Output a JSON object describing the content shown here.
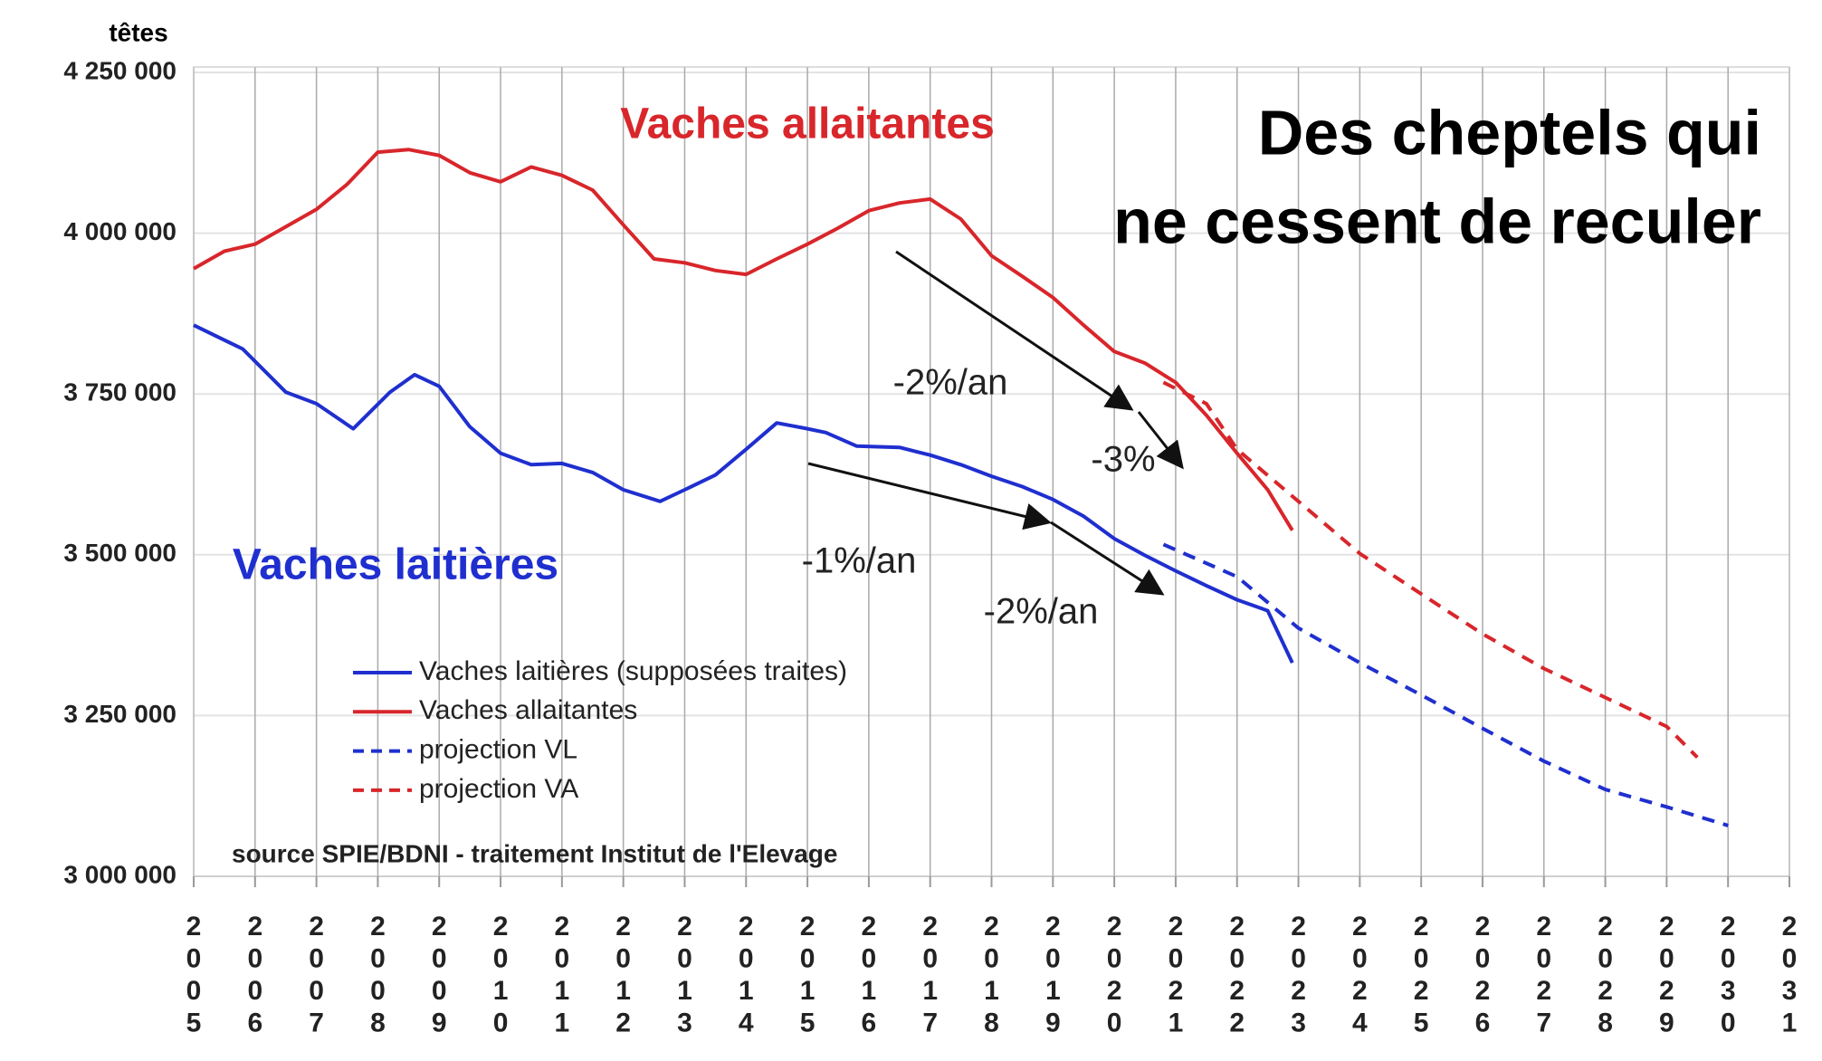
{
  "chart_data": {
    "type": "line",
    "title": [
      "Des cheptels qui",
      "ne cessent de reculer"
    ],
    "y_label": "têtes",
    "annotations": [
      "Vaches allaitantes",
      "Vaches laitières",
      "-2%/an",
      "-3%",
      "-1%/an",
      "-2%/an"
    ],
    "source": "source SPIE/BDNI - traitement Institut de l'Elevage",
    "xlim": [
      2005,
      2031
    ],
    "xticks": [
      2005,
      2006,
      2007,
      2008,
      2009,
      2010,
      2011,
      2012,
      2013,
      2014,
      2015,
      2016,
      2017,
      2018,
      2019,
      2020,
      2021,
      2022,
      2023,
      2024,
      2025,
      2026,
      2027,
      2028,
      2029,
      2030,
      2031
    ],
    "ylim": [
      3000000,
      4250000
    ],
    "yticks": [
      {
        "value": 3000000,
        "label": "3 000 000"
      },
      {
        "value": 3250000,
        "label": "3 250 000"
      },
      {
        "value": 3500000,
        "label": "3 500 000"
      },
      {
        "value": 3750000,
        "label": "3 750 000"
      },
      {
        "value": 4000000,
        "label": "4 000 000"
      },
      {
        "value": 4250000,
        "label": "4 250 000"
      }
    ],
    "grid": true,
    "series": [
      {
        "name": "Vaches laitières (supposées traites)",
        "color": "#1f2fcf",
        "dashed": false,
        "x": [
          2005.0,
          2005.8,
          2006.5,
          2007.0,
          2007.6,
          2008.2,
          2008.6,
          2009.0,
          2009.5,
          2010.0,
          2010.5,
          2011.0,
          2011.5,
          2012.0,
          2012.6,
          2013.0,
          2013.5,
          2014.0,
          2014.5,
          2015.0,
          2015.3,
          2015.8,
          2016.5,
          2017.0,
          2017.5,
          2018.0,
          2018.5,
          2019.0,
          2019.5,
          2020.0,
          2020.5,
          2021.0,
          2021.5,
          2022.0,
          2022.5,
          2022.9
        ],
        "values": [
          3857000,
          3820000,
          3753000,
          3735000,
          3696000,
          3753000,
          3780000,
          3762000,
          3699000,
          3658000,
          3640000,
          3642000,
          3628000,
          3601000,
          3583000,
          3601000,
          3624000,
          3664000,
          3705000,
          3696000,
          3690000,
          3669000,
          3667000,
          3655000,
          3640000,
          3622000,
          3606000,
          3586000,
          3560000,
          3525000,
          3499000,
          3475000,
          3452000,
          3430000,
          3413000,
          3332000
        ]
      },
      {
        "name": "Vaches allaitantes",
        "color": "#d8262b",
        "dashed": false,
        "x": [
          2005.0,
          2005.5,
          2006.0,
          2006.5,
          2007.0,
          2007.5,
          2008.0,
          2008.5,
          2009.0,
          2009.5,
          2010.0,
          2010.5,
          2011.0,
          2011.5,
          2012.0,
          2012.5,
          2013.0,
          2013.5,
          2014.0,
          2014.5,
          2015.0,
          2015.5,
          2016.0,
          2016.5,
          2017.0,
          2017.5,
          2018.0,
          2018.5,
          2019.0,
          2019.5,
          2020.0,
          2020.5,
          2021.0,
          2021.5,
          2022.0,
          2022.5,
          2022.9
        ],
        "values": [
          3945000,
          3972000,
          3983000,
          4010000,
          4037000,
          4076000,
          4126000,
          4130000,
          4121000,
          4094000,
          4080000,
          4103000,
          4090000,
          4067000,
          4013000,
          3960000,
          3954000,
          3942000,
          3936000,
          3960000,
          3983000,
          4008000,
          4035000,
          4047000,
          4053000,
          4022000,
          3965000,
          3933000,
          3900000,
          3857000,
          3816000,
          3798000,
          3768000,
          3717000,
          3658000,
          3601000,
          3538000
        ]
      },
      {
        "name": "projection VL",
        "color": "#1f2fcf",
        "dashed": true,
        "x": [
          2020.8,
          2022.0,
          2023.0,
          2024.0,
          2025.0,
          2026.0,
          2027.0,
          2028.0,
          2029.0,
          2030.0
        ],
        "values": [
          3516000,
          3466000,
          3386000,
          3332000,
          3282000,
          3230000,
          3179000,
          3135000,
          3108000,
          3079000
        ]
      },
      {
        "name": "projection VA",
        "color": "#d8262b",
        "dashed": true,
        "x": [
          2020.8,
          2021.5,
          2022.0,
          2023.0,
          2024.0,
          2025.0,
          2026.0,
          2027.0,
          2028.0,
          2029.0,
          2029.5
        ],
        "values": [
          3768000,
          3735000,
          3664000,
          3583000,
          3502000,
          3439000,
          3377000,
          3323000,
          3278000,
          3233000,
          3185000
        ]
      }
    ]
  }
}
